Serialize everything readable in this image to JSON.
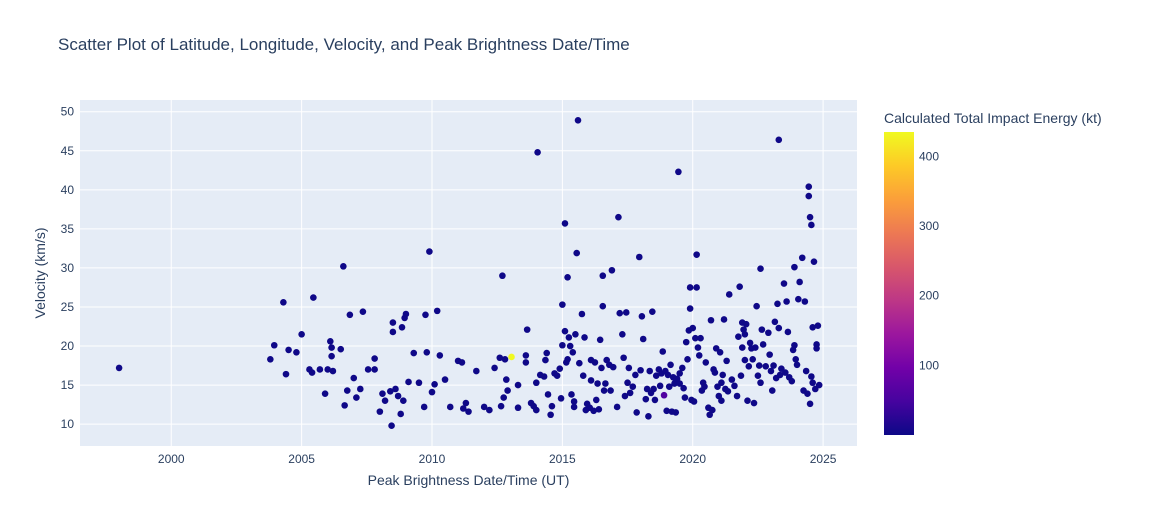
{
  "chart_data": {
    "type": "scatter",
    "title": "Scatter Plot of Latitude, Longitude, Velocity, and Peak Brightness Date/Time",
    "xlabel": "Peak Brightness Date/Time (UT)",
    "ylabel": "Velocity (km/s)",
    "xlim": [
      1996.5,
      2026.3
    ],
    "ylim": [
      7.2,
      51.5
    ],
    "x_ticks": [
      2000,
      2005,
      2010,
      2015,
      2020,
      2025
    ],
    "y_ticks": [
      10,
      15,
      20,
      25,
      30,
      35,
      40,
      45,
      50
    ],
    "grid": true,
    "colorbar": {
      "title": "Calculated Total Impact Energy (kt)",
      "range": [
        0,
        435
      ],
      "ticks": [
        100,
        200,
        300,
        400
      ],
      "colorscale": [
        "#0d0887",
        "#46039f",
        "#7201a8",
        "#9c179e",
        "#bd3786",
        "#d8576b",
        "#ed7953",
        "#fb9f3a",
        "#fdca26",
        "#f0f921"
      ]
    },
    "points": [
      [
        1998.0,
        17.2,
        2
      ],
      [
        2003.8,
        18.3,
        2
      ],
      [
        2003.95,
        20.1,
        2
      ],
      [
        2004.3,
        25.6,
        2
      ],
      [
        2004.4,
        16.4,
        2
      ],
      [
        2004.5,
        19.5,
        2
      ],
      [
        2004.8,
        19.2,
        2
      ],
      [
        2005.0,
        21.5,
        2
      ],
      [
        2005.3,
        17.0,
        2
      ],
      [
        2005.4,
        16.6,
        2
      ],
      [
        2005.45,
        26.2,
        2
      ],
      [
        2005.7,
        17.0,
        2
      ],
      [
        2005.9,
        13.9,
        2
      ],
      [
        2006.0,
        17.0,
        2
      ],
      [
        2006.1,
        20.6,
        2
      ],
      [
        2006.15,
        19.8,
        2
      ],
      [
        2006.2,
        16.8,
        2
      ],
      [
        2006.15,
        18.7,
        2
      ],
      [
        2006.5,
        19.6,
        2
      ],
      [
        2006.6,
        30.2,
        2
      ],
      [
        2006.65,
        12.4,
        2
      ],
      [
        2006.75,
        14.3,
        2
      ],
      [
        2006.85,
        24.0,
        2
      ],
      [
        2007.0,
        15.9,
        2
      ],
      [
        2007.1,
        13.4,
        2
      ],
      [
        2007.25,
        14.5,
        2
      ],
      [
        2007.35,
        24.4,
        2
      ],
      [
        2007.55,
        17.0,
        2
      ],
      [
        2007.8,
        18.4,
        2
      ],
      [
        2007.8,
        17.0,
        2
      ],
      [
        2008.0,
        11.6,
        2
      ],
      [
        2008.1,
        13.9,
        2
      ],
      [
        2008.2,
        13.0,
        2
      ],
      [
        2008.4,
        14.2,
        2
      ],
      [
        2008.45,
        9.8,
        2
      ],
      [
        2008.5,
        23.0,
        2
      ],
      [
        2008.5,
        21.8,
        2
      ],
      [
        2008.6,
        14.5,
        2
      ],
      [
        2008.7,
        13.6,
        2
      ],
      [
        2008.8,
        11.3,
        2
      ],
      [
        2008.85,
        22.4,
        2
      ],
      [
        2008.9,
        13.0,
        2
      ],
      [
        2008.95,
        23.6,
        2
      ],
      [
        2009.0,
        24.1,
        2
      ],
      [
        2009.1,
        15.4,
        2
      ],
      [
        2009.3,
        19.1,
        2
      ],
      [
        2009.5,
        15.3,
        2
      ],
      [
        2009.7,
        12.2,
        2
      ],
      [
        2009.75,
        24.0,
        2
      ],
      [
        2009.8,
        19.2,
        2
      ],
      [
        2009.9,
        32.1,
        2
      ],
      [
        2010.0,
        14.1,
        2
      ],
      [
        2010.1,
        15.1,
        2
      ],
      [
        2010.2,
        24.5,
        2
      ],
      [
        2010.3,
        18.8,
        2
      ],
      [
        2010.5,
        15.7,
        2
      ],
      [
        2010.7,
        12.2,
        2
      ],
      [
        2011.0,
        18.1,
        2
      ],
      [
        2011.15,
        17.9,
        2
      ],
      [
        2011.2,
        12.0,
        2
      ],
      [
        2011.3,
        12.7,
        2
      ],
      [
        2011.4,
        11.6,
        2
      ],
      [
        2011.7,
        16.8,
        2
      ],
      [
        2012.0,
        12.2,
        2
      ],
      [
        2012.2,
        11.8,
        2
      ],
      [
        2012.4,
        17.2,
        2
      ],
      [
        2012.6,
        18.5,
        2
      ],
      [
        2012.65,
        12.3,
        2
      ],
      [
        2012.7,
        29.0,
        2
      ],
      [
        2012.75,
        13.4,
        2
      ],
      [
        2012.8,
        18.3,
        2
      ],
      [
        2012.85,
        15.7,
        2
      ],
      [
        2012.9,
        14.3,
        2
      ],
      [
        2013.05,
        18.6,
        440
      ],
      [
        2013.3,
        15.0,
        2
      ],
      [
        2013.3,
        12.1,
        2
      ],
      [
        2013.6,
        18.8,
        2
      ],
      [
        2013.6,
        17.9,
        2
      ],
      [
        2013.65,
        22.1,
        2
      ],
      [
        2013.8,
        12.7,
        2
      ],
      [
        2013.9,
        12.3,
        2
      ],
      [
        2014.0,
        11.8,
        2
      ],
      [
        2014.0,
        15.3,
        2
      ],
      [
        2014.05,
        44.8,
        2
      ],
      [
        2014.15,
        16.3,
        2
      ],
      [
        2014.3,
        16.1,
        2
      ],
      [
        2014.35,
        18.2,
        2
      ],
      [
        2014.4,
        19.1,
        2
      ],
      [
        2014.45,
        13.8,
        2
      ],
      [
        2014.55,
        11.2,
        2
      ],
      [
        2014.6,
        12.3,
        2
      ],
      [
        2014.7,
        16.5,
        2
      ],
      [
        2014.8,
        16.2,
        2
      ],
      [
        2014.9,
        17.1,
        2
      ],
      [
        2014.95,
        13.3,
        2
      ],
      [
        2015.0,
        25.3,
        2
      ],
      [
        2015.0,
        20.1,
        2
      ],
      [
        2015.1,
        21.9,
        2
      ],
      [
        2015.1,
        35.7,
        2
      ],
      [
        2015.15,
        17.9,
        2
      ],
      [
        2015.2,
        28.8,
        2
      ],
      [
        2015.2,
        18.3,
        2
      ],
      [
        2015.25,
        21.1,
        2
      ],
      [
        2015.3,
        20.0,
        2
      ],
      [
        2015.35,
        13.8,
        2
      ],
      [
        2015.4,
        19.2,
        2
      ],
      [
        2015.45,
        12.9,
        2
      ],
      [
        2015.45,
        12.2,
        2
      ],
      [
        2015.5,
        21.5,
        2
      ],
      [
        2015.55,
        31.9,
        2
      ],
      [
        2015.6,
        48.9,
        2
      ],
      [
        2015.65,
        17.8,
        2
      ],
      [
        2015.75,
        24.1,
        2
      ],
      [
        2015.8,
        16.2,
        2
      ],
      [
        2015.85,
        21.1,
        2
      ],
      [
        2015.9,
        11.8,
        2
      ],
      [
        2015.95,
        12.6,
        2
      ],
      [
        2016.05,
        12.1,
        2
      ],
      [
        2016.1,
        18.2,
        2
      ],
      [
        2016.1,
        15.6,
        2
      ],
      [
        2016.2,
        11.7,
        2
      ],
      [
        2016.25,
        17.9,
        2
      ],
      [
        2016.3,
        13.1,
        2
      ],
      [
        2016.35,
        15.2,
        2
      ],
      [
        2016.4,
        11.9,
        2
      ],
      [
        2016.45,
        20.8,
        2
      ],
      [
        2016.5,
        17.2,
        2
      ],
      [
        2016.55,
        29.0,
        2
      ],
      [
        2016.55,
        25.1,
        2
      ],
      [
        2016.6,
        14.3,
        2
      ],
      [
        2016.65,
        15.2,
        2
      ],
      [
        2016.7,
        18.2,
        2
      ],
      [
        2016.8,
        17.6,
        2
      ],
      [
        2016.85,
        14.3,
        2
      ],
      [
        2016.9,
        29.7,
        2
      ],
      [
        2016.95,
        17.3,
        2
      ],
      [
        2017.1,
        12.2,
        2
      ],
      [
        2017.15,
        36.5,
        2
      ],
      [
        2017.2,
        24.2,
        2
      ],
      [
        2017.3,
        21.5,
        2
      ],
      [
        2017.35,
        18.5,
        2
      ],
      [
        2017.4,
        13.6,
        2
      ],
      [
        2017.45,
        24.3,
        2
      ],
      [
        2017.5,
        15.3,
        2
      ],
      [
        2017.55,
        17.2,
        2
      ],
      [
        2017.6,
        14.0,
        2
      ],
      [
        2017.7,
        14.8,
        2
      ],
      [
        2017.8,
        16.3,
        2
      ],
      [
        2017.85,
        11.5,
        2
      ],
      [
        2017.95,
        31.4,
        2
      ],
      [
        2018.0,
        16.9,
        2
      ],
      [
        2018.05,
        23.8,
        2
      ],
      [
        2018.1,
        20.9,
        2
      ],
      [
        2018.2,
        13.2,
        2
      ],
      [
        2018.25,
        14.5,
        2
      ],
      [
        2018.3,
        11.0,
        2
      ],
      [
        2018.35,
        16.8,
        2
      ],
      [
        2018.4,
        14.0,
        2
      ],
      [
        2018.45,
        24.4,
        2
      ],
      [
        2018.5,
        14.5,
        2
      ],
      [
        2018.55,
        13.1,
        2
      ],
      [
        2018.6,
        16.2,
        2
      ],
      [
        2018.7,
        17.0,
        2
      ],
      [
        2018.75,
        14.9,
        2
      ],
      [
        2018.8,
        16.5,
        2
      ],
      [
        2018.85,
        19.3,
        2
      ],
      [
        2018.9,
        13.7,
        60
      ],
      [
        2018.95,
        16.8,
        2
      ],
      [
        2019.0,
        11.7,
        2
      ],
      [
        2019.05,
        16.3,
        2
      ],
      [
        2019.1,
        14.8,
        2
      ],
      [
        2019.15,
        17.6,
        2
      ],
      [
        2019.2,
        11.6,
        2
      ],
      [
        2019.25,
        16.0,
        2
      ],
      [
        2019.3,
        15.2,
        2
      ],
      [
        2019.35,
        11.5,
        2
      ],
      [
        2019.4,
        15.8,
        2
      ],
      [
        2019.45,
        42.3,
        2
      ],
      [
        2019.5,
        16.5,
        2
      ],
      [
        2019.5,
        15.2,
        2
      ],
      [
        2019.6,
        17.2,
        2
      ],
      [
        2019.65,
        14.6,
        2
      ],
      [
        2019.7,
        13.4,
        2
      ],
      [
        2019.75,
        20.5,
        2
      ],
      [
        2019.8,
        18.3,
        2
      ],
      [
        2019.85,
        22.0,
        2
      ],
      [
        2019.9,
        24.8,
        2
      ],
      [
        2019.9,
        27.5,
        2
      ],
      [
        2019.95,
        13.1,
        2
      ],
      [
        2020.0,
        22.3,
        2
      ],
      [
        2020.05,
        12.9,
        2
      ],
      [
        2020.1,
        21.0,
        2
      ],
      [
        2020.15,
        31.7,
        2
      ],
      [
        2020.15,
        27.5,
        2
      ],
      [
        2020.2,
        19.8,
        2
      ],
      [
        2020.25,
        18.8,
        2
      ],
      [
        2020.3,
        21.0,
        2
      ],
      [
        2020.35,
        14.3,
        2
      ],
      [
        2020.4,
        15.3,
        2
      ],
      [
        2020.45,
        14.8,
        2
      ],
      [
        2020.5,
        17.9,
        2
      ],
      [
        2020.6,
        12.1,
        2
      ],
      [
        2020.65,
        11.2,
        2
      ],
      [
        2020.7,
        23.3,
        2
      ],
      [
        2020.75,
        11.8,
        2
      ],
      [
        2020.8,
        17.0,
        2
      ],
      [
        2020.85,
        16.6,
        2
      ],
      [
        2020.9,
        19.7,
        2
      ],
      [
        2020.95,
        14.8,
        2
      ],
      [
        2021.0,
        13.6,
        2
      ],
      [
        2021.05,
        19.2,
        2
      ],
      [
        2021.1,
        15.3,
        2
      ],
      [
        2021.1,
        13.0,
        2
      ],
      [
        2021.15,
        16.3,
        2
      ],
      [
        2021.2,
        23.4,
        2
      ],
      [
        2021.25,
        14.5,
        2
      ],
      [
        2021.3,
        18.1,
        2
      ],
      [
        2021.35,
        14.2,
        2
      ],
      [
        2021.4,
        26.6,
        2
      ],
      [
        2021.5,
        15.7,
        2
      ],
      [
        2021.6,
        14.9,
        2
      ],
      [
        2021.7,
        13.6,
        2
      ],
      [
        2021.75,
        21.2,
        2
      ],
      [
        2021.8,
        27.6,
        2
      ],
      [
        2021.85,
        16.2,
        2
      ],
      [
        2021.9,
        23.0,
        2
      ],
      [
        2021.9,
        19.8,
        2
      ],
      [
        2021.95,
        22.1,
        2
      ],
      [
        2022.0,
        18.2,
        2
      ],
      [
        2022.0,
        21.5,
        2
      ],
      [
        2022.05,
        22.8,
        2
      ],
      [
        2022.1,
        13.0,
        2
      ],
      [
        2022.15,
        17.4,
        2
      ],
      [
        2022.2,
        20.4,
        2
      ],
      [
        2022.25,
        19.7,
        2
      ],
      [
        2022.3,
        18.3,
        2
      ],
      [
        2022.35,
        12.7,
        2
      ],
      [
        2022.4,
        19.8,
        2
      ],
      [
        2022.45,
        25.1,
        2
      ],
      [
        2022.5,
        16.2,
        2
      ],
      [
        2022.55,
        17.5,
        2
      ],
      [
        2022.6,
        29.9,
        2
      ],
      [
        2022.6,
        15.3,
        2
      ],
      [
        2022.65,
        22.1,
        2
      ],
      [
        2022.7,
        20.2,
        2
      ],
      [
        2022.8,
        17.4,
        2
      ],
      [
        2022.9,
        21.7,
        2
      ],
      [
        2022.95,
        18.9,
        2
      ],
      [
        2023.0,
        16.8,
        2
      ],
      [
        2023.05,
        14.3,
        2
      ],
      [
        2023.1,
        17.5,
        2
      ],
      [
        2023.15,
        23.1,
        2
      ],
      [
        2023.2,
        15.9,
        2
      ],
      [
        2023.25,
        25.4,
        2
      ],
      [
        2023.3,
        46.4,
        2
      ],
      [
        2023.3,
        22.3,
        2
      ],
      [
        2023.35,
        16.3,
        2
      ],
      [
        2023.4,
        17.1,
        2
      ],
      [
        2023.5,
        28.0,
        2
      ],
      [
        2023.55,
        16.6,
        2
      ],
      [
        2023.6,
        25.7,
        2
      ],
      [
        2023.65,
        21.8,
        2
      ],
      [
        2023.7,
        16.0,
        2
      ],
      [
        2023.8,
        15.5,
        2
      ],
      [
        2023.85,
        19.5,
        2
      ],
      [
        2023.9,
        30.1,
        2
      ],
      [
        2023.9,
        20.1,
        2
      ],
      [
        2023.95,
        18.3,
        2
      ],
      [
        2024.0,
        17.6,
        2
      ],
      [
        2024.05,
        26.0,
        2
      ],
      [
        2024.1,
        28.2,
        2
      ],
      [
        2024.2,
        31.3,
        2
      ],
      [
        2024.25,
        14.3,
        2
      ],
      [
        2024.3,
        25.7,
        2
      ],
      [
        2024.35,
        16.8,
        2
      ],
      [
        2024.4,
        13.9,
        2
      ],
      [
        2024.45,
        40.4,
        2
      ],
      [
        2024.45,
        39.2,
        2
      ],
      [
        2024.5,
        36.5,
        2
      ],
      [
        2024.5,
        12.6,
        2
      ],
      [
        2024.55,
        35.5,
        2
      ],
      [
        2024.55,
        16.1,
        2
      ],
      [
        2024.6,
        15.3,
        2
      ],
      [
        2024.6,
        22.4,
        2
      ],
      [
        2024.65,
        30.8,
        2
      ],
      [
        2024.7,
        14.5,
        2
      ],
      [
        2024.75,
        20.2,
        2
      ],
      [
        2024.75,
        19.7,
        2
      ],
      [
        2024.8,
        22.6,
        2
      ],
      [
        2024.85,
        15.0,
        2
      ]
    ]
  }
}
